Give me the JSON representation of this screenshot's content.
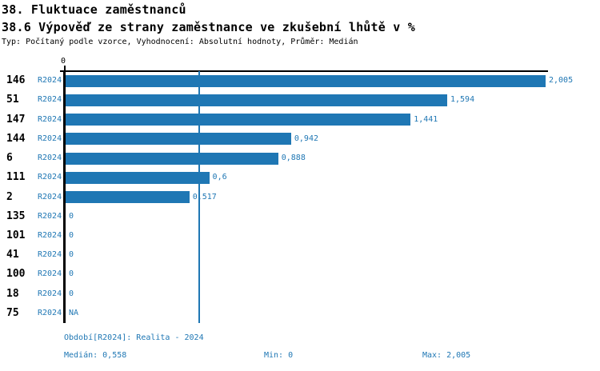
{
  "header": {
    "title": "38. Fluktuace zaměstnanců",
    "subtitle": "38.6 Výpověď ze strany zaměstnance ve zkušební lhůtě v %",
    "meta": "Typ: Počítaný podle vzorce, Vyhodnocení: Absolutní hodnoty, Průměr: Medián"
  },
  "colors": {
    "accent": "#1f77b4",
    "axis": "#000000"
  },
  "chart_data": {
    "type": "bar",
    "orientation": "horizontal",
    "title": "38.6 Výpověď ze strany zaměstnance ve zkušební lhůtě v %",
    "categories": [
      "146",
      "51",
      "147",
      "144",
      "6",
      "111",
      "2",
      "135",
      "101",
      "41",
      "100",
      "18",
      "75"
    ],
    "series_label": "R2024",
    "values": [
      2.005,
      1.594,
      1.441,
      0.942,
      0.888,
      0.6,
      0.517,
      0,
      0,
      0,
      0,
      0,
      null
    ],
    "value_labels": [
      "2,005",
      "1,594",
      "1,441",
      "0,942",
      "0,888",
      "0,6",
      "0,517",
      "0",
      "0",
      "0",
      "0",
      "0",
      "NA"
    ],
    "xlim": [
      0,
      2.005
    ],
    "x_tick_labels": [
      "0"
    ],
    "median_line": 0.558,
    "bar_color": "#1f77b4",
    "label_color": "#1f77b4",
    "grid": false,
    "legend_position": "none"
  },
  "footer": {
    "period": "Období[R2024]: Realita - 2024",
    "median": "Medián: 0,558",
    "min": "Min: 0",
    "max": "Max: 2,005"
  }
}
